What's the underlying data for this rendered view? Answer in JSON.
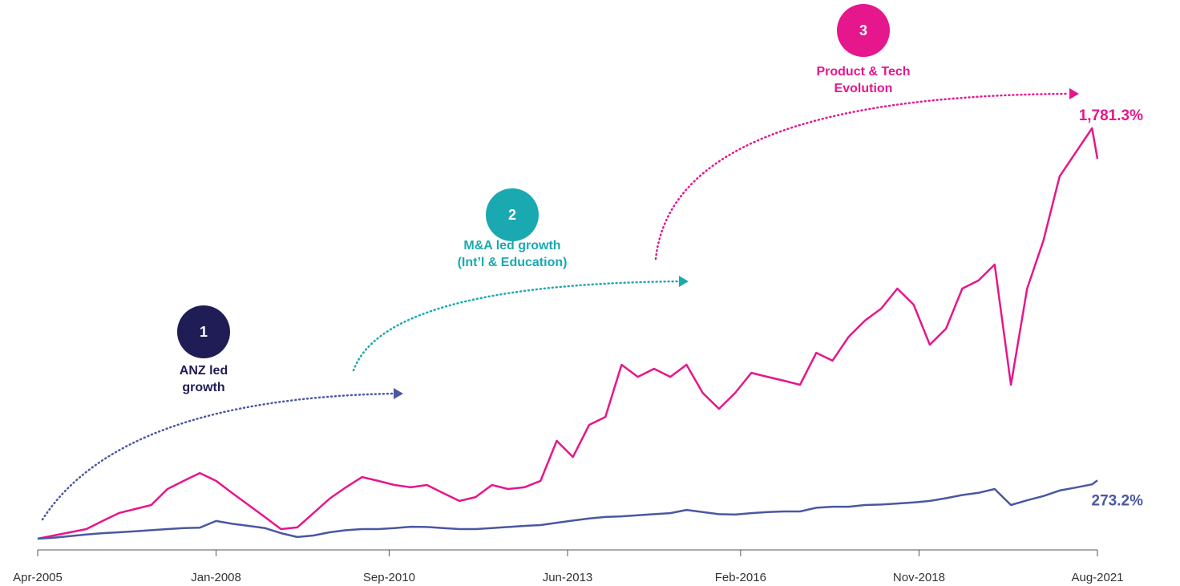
{
  "chart_data": {
    "type": "line",
    "x": [
      "2005-04",
      "2005-07",
      "2005-10",
      "2006-01",
      "2006-04",
      "2006-07",
      "2006-10",
      "2007-01",
      "2007-04",
      "2007-07",
      "2007-10",
      "2008-01",
      "2008-04",
      "2008-07",
      "2008-10",
      "2009-01",
      "2009-04",
      "2009-07",
      "2009-10",
      "2010-01",
      "2010-04",
      "2010-07",
      "2010-10",
      "2011-01",
      "2011-04",
      "2011-07",
      "2011-10",
      "2012-01",
      "2012-04",
      "2012-07",
      "2012-10",
      "2013-01",
      "2013-04",
      "2013-07",
      "2013-10",
      "2014-01",
      "2014-04",
      "2014-07",
      "2014-10",
      "2015-01",
      "2015-04",
      "2015-07",
      "2015-10",
      "2016-01",
      "2016-04",
      "2016-07",
      "2016-10",
      "2017-01",
      "2017-04",
      "2017-07",
      "2017-10",
      "2018-01",
      "2018-04",
      "2018-07",
      "2018-10",
      "2019-01",
      "2019-04",
      "2019-07",
      "2019-10",
      "2020-01",
      "2020-04",
      "2020-07",
      "2020-10",
      "2021-01",
      "2021-04",
      "2021-07",
      "2021-08"
    ],
    "xlim": [
      "2005-04",
      "2021-08"
    ],
    "xticks": [
      {
        "value": "2005-04",
        "label": "Apr-2005"
      },
      {
        "value": "2008-01",
        "label": "Jan-2008"
      },
      {
        "value": "2010-09",
        "label": "Sep-2010"
      },
      {
        "value": "2013-06",
        "label": "Jun-2013"
      },
      {
        "value": "2016-02",
        "label": "Feb-2016"
      },
      {
        "value": "2018-11",
        "label": "Nov-2018"
      },
      {
        "value": "2021-08",
        "label": "Aug-2021"
      }
    ],
    "series": [
      {
        "color": "#e6168c",
        "end_label": "1,781.3%",
        "values": [
          0,
          15,
          30,
          45,
          83,
          120,
          139,
          158,
          233,
          271,
          308,
          271,
          214,
          158,
          102,
          45,
          53,
          120,
          188,
          241,
          289,
          271,
          252,
          241,
          252,
          214,
          177,
          195,
          252,
          233,
          241,
          271,
          459,
          383,
          534,
          571,
          816,
          759,
          797,
          759,
          816,
          684,
          609,
          684,
          778,
          759,
          741,
          722,
          872,
          835,
          947,
          1023,
          1079,
          1173,
          1098,
          910,
          985,
          1173,
          1211,
          1286,
          722,
          1173,
          1398,
          1699,
          1812,
          1925,
          1781.3
        ]
      },
      {
        "color": "#4a57a3",
        "end_label": "273.2%",
        "values": [
          0,
          5,
          12,
          20,
          26,
          30,
          35,
          40,
          45,
          50,
          52,
          83,
          70,
          60,
          50,
          26,
          8,
          15,
          30,
          40,
          45,
          45,
          50,
          56,
          55,
          50,
          45,
          45,
          50,
          55,
          60,
          64,
          75,
          85,
          95,
          102,
          105,
          110,
          115,
          120,
          135,
          125,
          115,
          113,
          120,
          125,
          128,
          128,
          145,
          150,
          150,
          158,
          160,
          165,
          170,
          177,
          190,
          205,
          215,
          233,
          158,
          180,
          200,
          226,
          240,
          255,
          273.2
        ]
      }
    ],
    "annotations": [
      {
        "number": "1",
        "lines": [
          "ANZ led",
          "growth"
        ],
        "color": "#201c56"
      },
      {
        "number": "2",
        "lines": [
          "M&A led growth",
          "(Int’l & Education)"
        ],
        "color": "#1aa9b0"
      },
      {
        "number": "3",
        "lines": [
          "Product & Tech",
          "Evolution"
        ],
        "color": "#e6168c"
      }
    ]
  }
}
